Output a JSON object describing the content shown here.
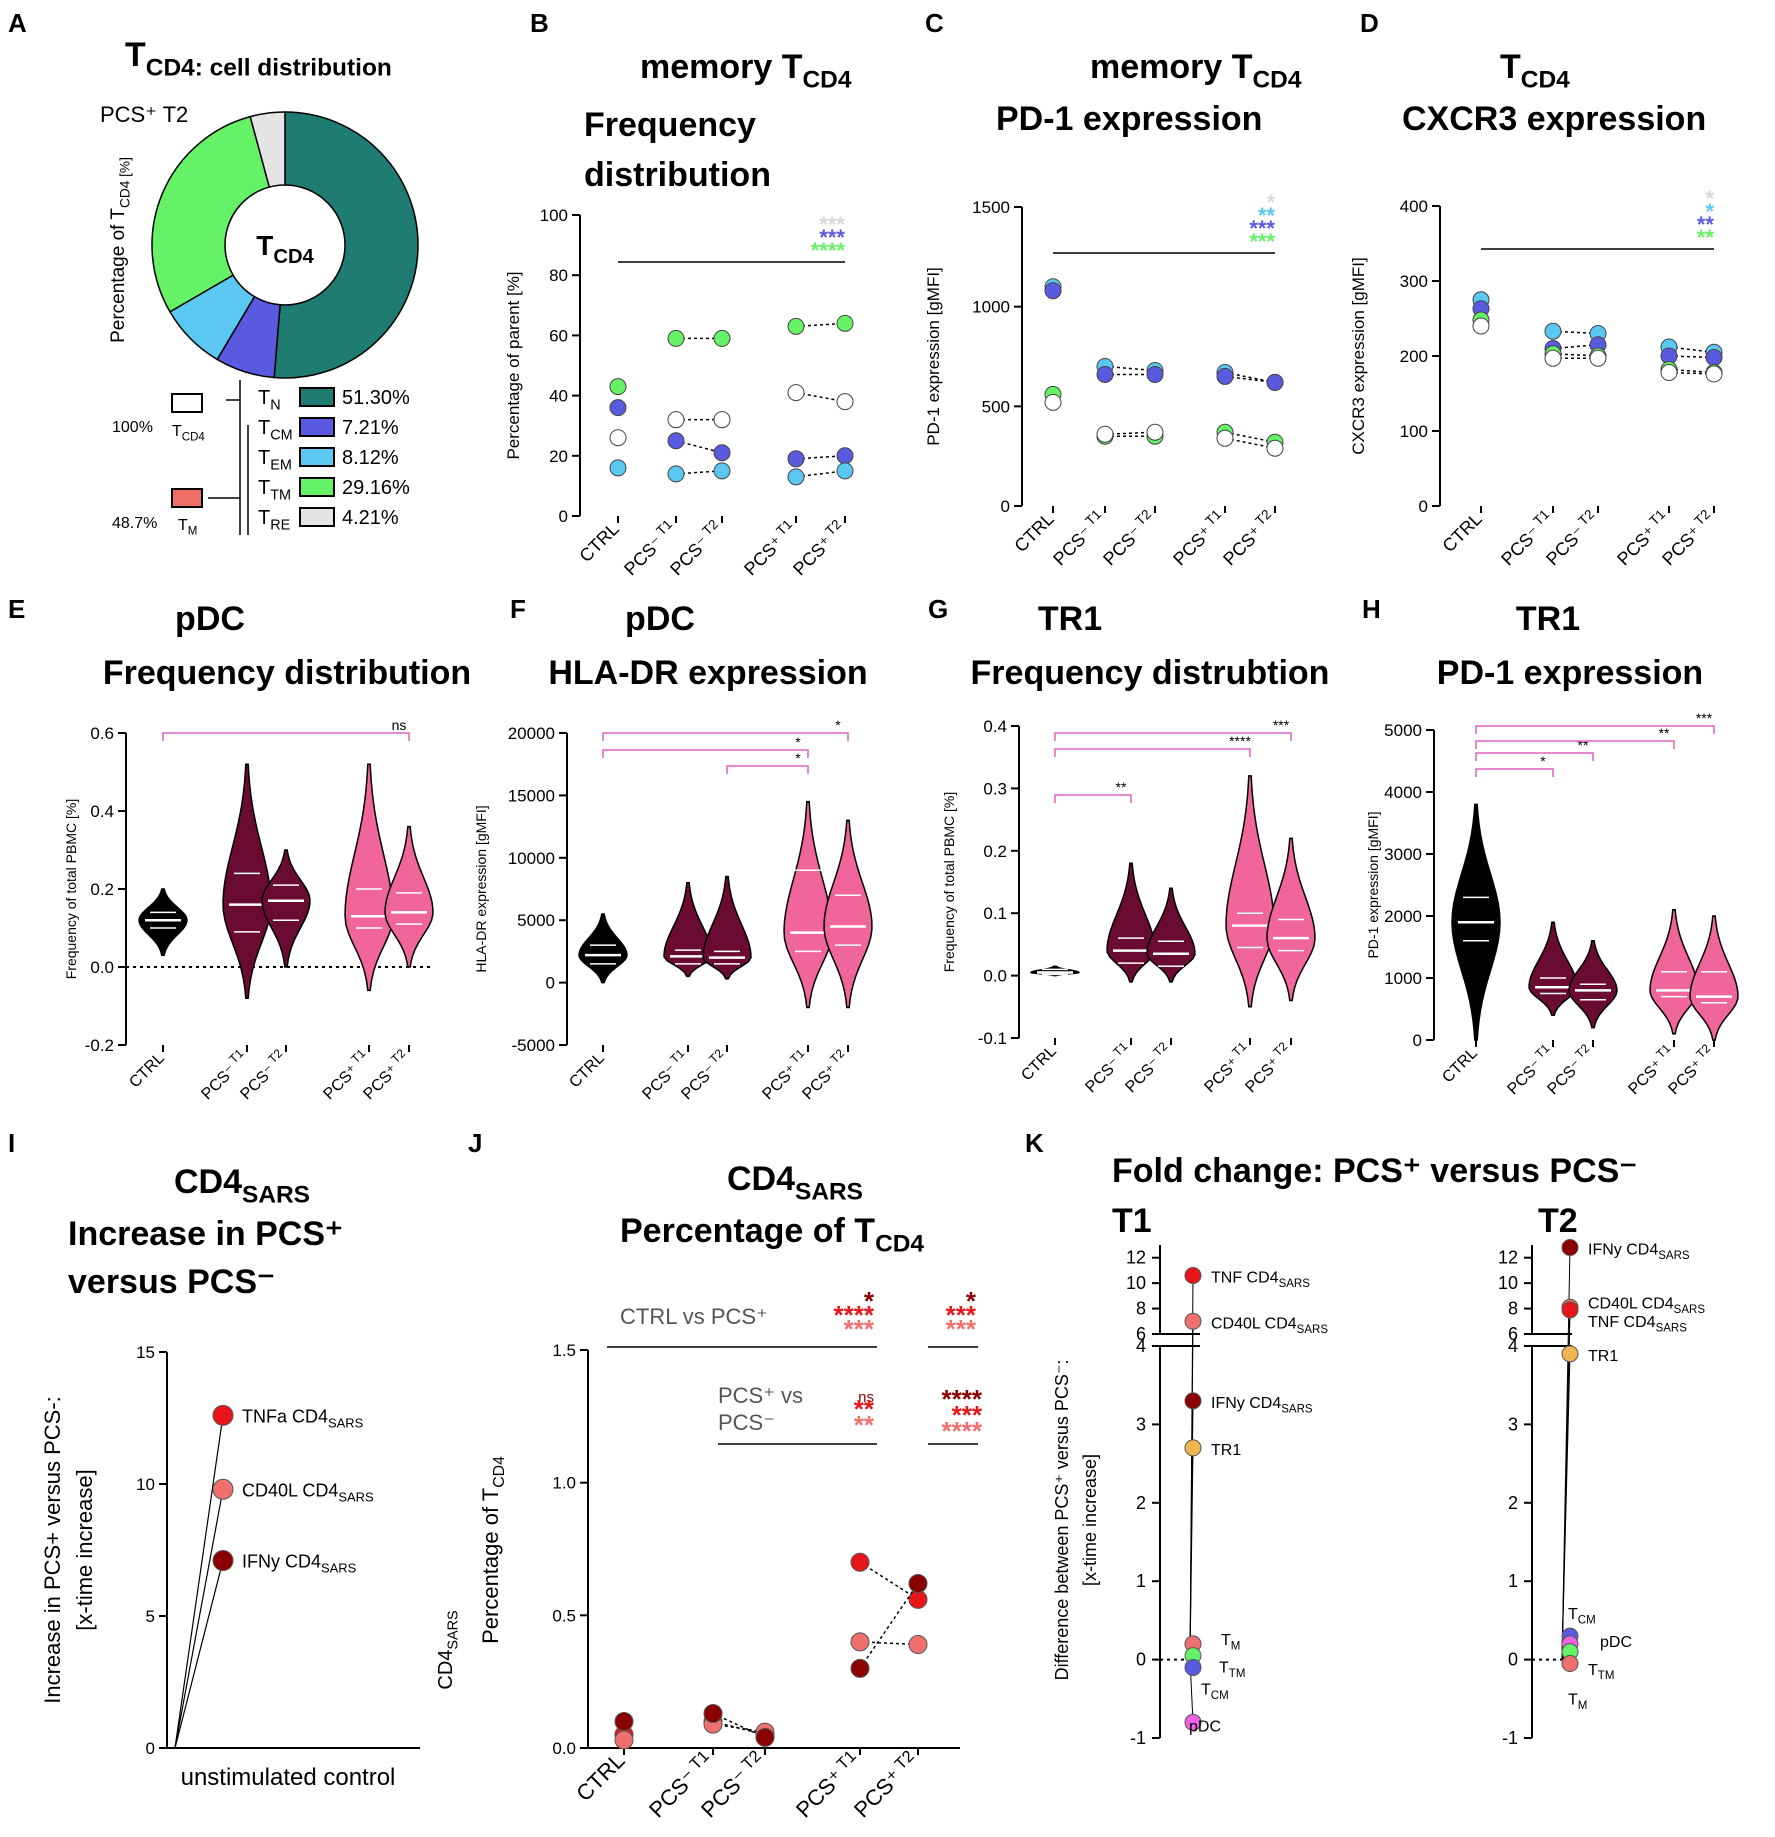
{
  "colors": {
    "tn": "#1e7c72",
    "tcm": "#5a5ae0",
    "tem": "#5ac8f0",
    "ttm": "#66f266",
    "tre": "#e4e4e4",
    "ctrl_violin": "#000000",
    "pcsneg_violin": "#6a0c32",
    "pcspos_violin": "#f0669a",
    "sig_line": "#e060c0",
    "red_dark": "#8b0000",
    "red": "#e8161a",
    "red_light": "#f07070",
    "orange": "#f0b450",
    "magenta": "#f060e0"
  },
  "groups5": [
    "CTRL",
    "PCS⁻ T1",
    "PCS⁻ T2",
    "PCS⁺ T1",
    "PCS⁺ T2"
  ],
  "panels": {
    "A": {
      "letter": "A",
      "title": "T_CD4: cell distribution",
      "pcs_label": "PCS⁺ T2",
      "center": "T_CD4",
      "ylabel": "Percentage of T_CD4 [%]",
      "hier_top": "100%",
      "hier_top_sub": "T_CD4",
      "hier_bottom": "48.7%",
      "hier_bottom_sub": "T_M"
    },
    "B": {
      "letter": "B",
      "title": [
        "memory T_CD4",
        "Frequency",
        "distribution"
      ],
      "ylabel": "Percentage of parent [%]",
      "stars": [
        "***",
        "***",
        "****"
      ]
    },
    "C": {
      "letter": "C",
      "title": [
        "memory T_CD4",
        "PD-1 expression"
      ],
      "ylabel": "PD-1 expression [gMFI]",
      "stars": [
        "*",
        "**",
        "***",
        "***"
      ]
    },
    "D": {
      "letter": "D",
      "title": [
        "T_CD4",
        "CXCR3 expression"
      ],
      "ylabel": "CXCR3 expression [gMFI]",
      "stars": [
        "*",
        "*",
        "**",
        "**"
      ]
    },
    "E": {
      "letter": "E",
      "title": [
        "pDC",
        "Frequency distribution"
      ],
      "ylabel": "Frequency of total PBMC [%]",
      "sig": [
        "ns"
      ]
    },
    "F": {
      "letter": "F",
      "title": [
        "pDC",
        "HLA-DR expression"
      ],
      "ylabel": "HLA-DR expression [gMFI]",
      "sig": [
        "*",
        "*",
        "*"
      ]
    },
    "G": {
      "letter": "G",
      "title": [
        "TR1",
        "Frequency distrubtion"
      ],
      "ylabel": "Frequency of total PBMC [%]",
      "sig": [
        "**",
        "****",
        "***"
      ]
    },
    "H": {
      "letter": "H",
      "title": [
        "TR1",
        "PD-1 expression"
      ],
      "ylabel": "PD-1 expression [gMFI]",
      "sig": [
        "*",
        "**",
        "**",
        "***"
      ]
    },
    "I": {
      "letter": "I",
      "title": [
        "CD4_SARS",
        "Increase in PCS⁺",
        "versus PCS⁻"
      ],
      "ylabel": "Increase in PCS+ versus PCS-: [x-time increase]",
      "xlabel": "unstimulated control"
    },
    "J": {
      "letter": "J",
      "title": [
        "CD4_SARS",
        "Percentage of T_CD4"
      ],
      "ylabel": "CD4_SARS Percentage of T_CD4 [%]",
      "cmp1": "CTRL vs PCS⁺",
      "cmp2a": "PCS⁺ vs",
      "cmp2b": "PCS⁻",
      "sig1_t1": [
        "*",
        "****",
        "***"
      ],
      "sig1_t2": [
        "*",
        "***",
        "***"
      ],
      "sig2_t1": [
        "ns",
        "**",
        "**"
      ],
      "sig2_t2": [
        "****",
        "***",
        "****"
      ]
    },
    "K": {
      "letter": "K",
      "title": "Fold change:  PCS⁺ versus PCS⁻",
      "sub1": "T1",
      "sub2": "T2",
      "ylabel": "Difference between PCS⁺ versus PCS⁻: [x-time increase]"
    }
  },
  "chart_data": [
    {
      "panel": "A",
      "type": "pie",
      "title": "T_CD4: cell distribution",
      "slices": [
        {
          "label": "T_N",
          "value": 51.3,
          "text": "51.30%"
        },
        {
          "label": "T_CM",
          "value": 7.21,
          "text": "7.21%"
        },
        {
          "label": "T_EM",
          "value": 8.12,
          "text": "8.12%"
        },
        {
          "label": "T_TM",
          "value": 29.16,
          "text": "29.16%"
        },
        {
          "label": "T_RE",
          "value": 4.21,
          "text": "4.21%"
        }
      ]
    },
    {
      "panel": "B",
      "type": "scatter",
      "ylim": [
        0,
        100
      ],
      "yticks": [
        0,
        20,
        40,
        60,
        80,
        100
      ],
      "series": [
        {
          "name": "T_TM",
          "values": [
            43,
            59,
            59,
            63,
            64
          ]
        },
        {
          "name": "T_N",
          "values": [
            26,
            32,
            32,
            41,
            38
          ]
        },
        {
          "name": "T_CM",
          "values": [
            36,
            25,
            21,
            19,
            20
          ]
        },
        {
          "name": "T_EM",
          "values": [
            16,
            14,
            15,
            13,
            15
          ]
        }
      ]
    },
    {
      "panel": "C",
      "type": "scatter",
      "ylim": [
        0,
        1500
      ],
      "yticks": [
        0,
        500,
        1000,
        1500
      ],
      "series": [
        {
          "name": "T_EM",
          "values": [
            1100,
            700,
            680,
            670,
            620
          ]
        },
        {
          "name": "T_CM",
          "values": [
            1080,
            660,
            660,
            650,
            620
          ]
        },
        {
          "name": "T_TM",
          "values": [
            560,
            350,
            350,
            370,
            320
          ]
        },
        {
          "name": "T_N",
          "values": [
            520,
            360,
            370,
            340,
            290
          ]
        }
      ]
    },
    {
      "panel": "D",
      "type": "scatter",
      "ylim": [
        0,
        400
      ],
      "yticks": [
        0,
        100,
        200,
        300,
        400
      ],
      "series": [
        {
          "name": "T_EM",
          "values": [
            275,
            233,
            230,
            212,
            205
          ]
        },
        {
          "name": "T_CM",
          "values": [
            263,
            210,
            215,
            200,
            198
          ]
        },
        {
          "name": "T_TM",
          "values": [
            248,
            203,
            200,
            182,
            178
          ]
        },
        {
          "name": "T_N",
          "values": [
            240,
            197,
            197,
            178,
            176
          ]
        }
      ]
    },
    {
      "panel": "E",
      "type": "violin",
      "ylim": [
        -0.2,
        0.6
      ],
      "yticks": [
        -0.2,
        0.0,
        0.2,
        0.4,
        0.6
      ],
      "groups": [
        {
          "name": "CTRL",
          "min": 0.03,
          "max": 0.2,
          "median": 0.12,
          "q1": 0.1,
          "q3": 0.14
        },
        {
          "name": "PCS⁻ T1",
          "min": -0.08,
          "max": 0.52,
          "median": 0.16,
          "q1": 0.09,
          "q3": 0.24
        },
        {
          "name": "PCS⁻ T2",
          "min": 0.0,
          "max": 0.3,
          "median": 0.17,
          "q1": 0.12,
          "q3": 0.21
        },
        {
          "name": "PCS⁺ T1",
          "min": -0.06,
          "max": 0.52,
          "median": 0.13,
          "q1": 0.1,
          "q3": 0.2
        },
        {
          "name": "PCS⁺ T2",
          "min": 0.0,
          "max": 0.36,
          "median": 0.14,
          "q1": 0.11,
          "q3": 0.19
        }
      ]
    },
    {
      "panel": "F",
      "type": "violin",
      "ylim": [
        -5000,
        20000
      ],
      "yticks": [
        -5000,
        0,
        5000,
        10000,
        15000,
        20000
      ],
      "groups": [
        {
          "name": "CTRL",
          "min": 0,
          "max": 5500,
          "median": 2200,
          "q1": 1500,
          "q3": 3000
        },
        {
          "name": "PCS⁻ T1",
          "min": 500,
          "max": 8000,
          "median": 2100,
          "q1": 1500,
          "q3": 2600
        },
        {
          "name": "PCS⁻ T2",
          "min": 300,
          "max": 8500,
          "median": 2000,
          "q1": 1500,
          "q3": 2500
        },
        {
          "name": "PCS⁺ T1",
          "min": -2000,
          "max": 14500,
          "median": 4000,
          "q1": 2500,
          "q3": 9000
        },
        {
          "name": "PCS⁺ T2",
          "min": -2000,
          "max": 13000,
          "median": 4500,
          "q1": 3000,
          "q3": 7000
        }
      ]
    },
    {
      "panel": "G",
      "type": "violin",
      "ylim": [
        -0.1,
        0.4
      ],
      "yticks": [
        -0.1,
        0.0,
        0.1,
        0.2,
        0.3,
        0.4
      ],
      "groups": [
        {
          "name": "CTRL",
          "min": 0.0,
          "max": 0.015,
          "median": 0.005,
          "q1": 0.002,
          "q3": 0.01
        },
        {
          "name": "PCS⁻ T1",
          "min": -0.01,
          "max": 0.18,
          "median": 0.04,
          "q1": 0.02,
          "q3": 0.06
        },
        {
          "name": "PCS⁻ T2",
          "min": -0.01,
          "max": 0.14,
          "median": 0.035,
          "q1": 0.015,
          "q3": 0.055
        },
        {
          "name": "PCS⁺ T1",
          "min": -0.05,
          "max": 0.32,
          "median": 0.08,
          "q1": 0.045,
          "q3": 0.1
        },
        {
          "name": "PCS⁺ T2",
          "min": -0.04,
          "max": 0.22,
          "median": 0.06,
          "q1": 0.04,
          "q3": 0.09
        }
      ]
    },
    {
      "panel": "H",
      "type": "violin",
      "ylim": [
        0,
        5000
      ],
      "yticks": [
        0,
        1000,
        2000,
        3000,
        4000,
        5000
      ],
      "groups": [
        {
          "name": "CTRL",
          "min": 0,
          "max": 3800,
          "median": 1900,
          "q1": 1600,
          "q3": 2300
        },
        {
          "name": "PCS⁻ T1",
          "min": 400,
          "max": 1900,
          "median": 850,
          "q1": 750,
          "q3": 1000
        },
        {
          "name": "PCS⁻ T2",
          "min": 200,
          "max": 1600,
          "median": 800,
          "q1": 650,
          "q3": 900
        },
        {
          "name": "PCS⁺ T1",
          "min": 100,
          "max": 2100,
          "median": 800,
          "q1": 700,
          "q3": 1100
        },
        {
          "name": "PCS⁺ T2",
          "min": 0,
          "max": 2000,
          "median": 700,
          "q1": 600,
          "q3": 1100
        }
      ]
    },
    {
      "panel": "I",
      "type": "scatter",
      "ylim": [
        0,
        15
      ],
      "yticks": [
        0,
        5,
        10,
        15
      ],
      "xlabel": "unstimulated control",
      "points": [
        {
          "label": "TNFa CD4_SARS",
          "value": 12.6
        },
        {
          "label": "CD40L CD4_SARS",
          "value": 9.8
        },
        {
          "label": "IFNy CD4_SARS",
          "value": 7.1
        }
      ]
    },
    {
      "panel": "J",
      "type": "scatter",
      "ylim": [
        0,
        1.5
      ],
      "yticks": [
        0.0,
        0.5,
        1.0,
        1.5
      ],
      "categories": [
        "CTRL",
        "PCS⁻ T1",
        "PCS⁻ T2",
        "PCS⁺ T1",
        "PCS⁺ T2"
      ],
      "series": [
        {
          "name": "TNF",
          "values": [
            0.05,
            0.1,
            0.05,
            0.7,
            0.56
          ]
        },
        {
          "name": "CD40L",
          "values": [
            0.03,
            0.09,
            0.06,
            0.4,
            0.39
          ]
        },
        {
          "name": "IFNy",
          "values": [
            0.1,
            0.13,
            0.04,
            0.3,
            0.62
          ]
        }
      ]
    },
    {
      "panel": "K",
      "type": "scatter",
      "subpanels": [
        "T1",
        "T2"
      ],
      "ylim": [
        -1,
        13
      ],
      "t1": [
        {
          "label": "TNF CD4_SARS",
          "value": 10.6
        },
        {
          "label": "CD40L CD4_SARS",
          "value": 7.0
        },
        {
          "label": "IFNy CD4_SARS",
          "value": 3.3
        },
        {
          "label": "TR1",
          "value": 2.7
        },
        {
          "label": "T_M",
          "value": 0.2
        },
        {
          "label": "T_TM",
          "value": 0.05
        },
        {
          "label": "T_CM",
          "value": -0.1
        },
        {
          "label": "pDC",
          "value": -0.8
        }
      ],
      "t2": [
        {
          "label": "IFNy CD4_SARS",
          "value": 12.8
        },
        {
          "label": "CD40L CD4_SARS",
          "value": 8.1
        },
        {
          "label": "TNF CD4_SARS",
          "value": 7.9
        },
        {
          "label": "TR1",
          "value": 3.9
        },
        {
          "label": "T_CM",
          "value": 0.3
        },
        {
          "label": "pDC",
          "value": 0.2
        },
        {
          "label": "T_TM",
          "value": 0.1
        },
        {
          "label": "T_M",
          "value": -0.05
        }
      ]
    }
  ]
}
